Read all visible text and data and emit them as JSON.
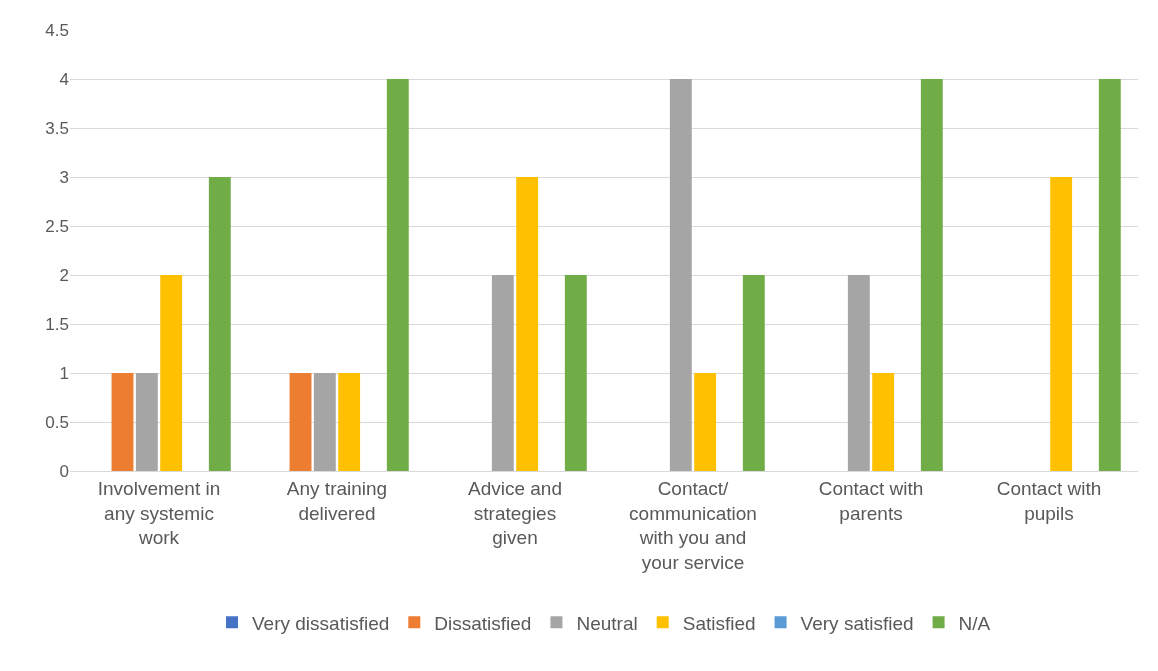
{
  "chart_data": {
    "type": "bar",
    "categories": [
      "Involvement in any systemic work",
      "Any training delivered",
      "Advice and strategies given",
      "Contact/ communication with you and your service",
      "Contact with parents",
      "Contact with pupils"
    ],
    "series": [
      {
        "name": "Very dissatisfied",
        "color": "#4472c4",
        "values": [
          0,
          0,
          0,
          0,
          0,
          0
        ]
      },
      {
        "name": "Dissatisfied",
        "color": "#ed7d31",
        "values": [
          1,
          1,
          0,
          0,
          0,
          0
        ]
      },
      {
        "name": "Neutral",
        "color": "#a5a5a5",
        "values": [
          1,
          1,
          2,
          4,
          2,
          0
        ]
      },
      {
        "name": "Satisfied",
        "color": "#ffc000",
        "values": [
          2,
          1,
          3,
          1,
          1,
          3
        ]
      },
      {
        "name": "Very satisfied",
        "color": "#5b9bd5",
        "values": [
          0,
          0,
          0,
          0,
          0,
          0
        ]
      },
      {
        "name": "N/A",
        "color": "#70ad47",
        "values": [
          3,
          4,
          2,
          2,
          4,
          4
        ]
      }
    ],
    "ylim": [
      0,
      4.5
    ],
    "yticks": [
      0,
      0.5,
      1,
      1.5,
      2,
      2.5,
      3,
      3.5,
      4,
      4.5
    ],
    "grid": "y",
    "legend": "bottom"
  }
}
